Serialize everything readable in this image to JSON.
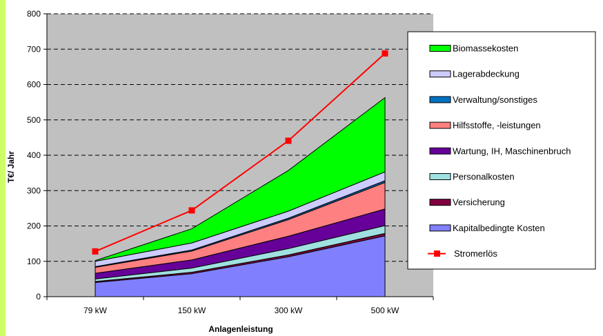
{
  "colors": {
    "left_strip": "#ccff66",
    "plot_background": "#c0c0c0",
    "gridline": "#000000"
  },
  "chart_data": {
    "type": "area",
    "stacked": true,
    "title": "",
    "xlabel": "Anlagenleistung",
    "ylabel": "T€/ Jahr",
    "ylim": [
      0,
      800
    ],
    "yticks": [
      0,
      100,
      200,
      300,
      400,
      500,
      600,
      700,
      800
    ],
    "grid": "horizontal dashed",
    "legend_position": "right",
    "categories": [
      "79 kW",
      "150 kW",
      "300 kW",
      "500 kW"
    ],
    "series": [
      {
        "name": "Kapitalbedingte Kosten",
        "kind": "area",
        "color": "#8080ff",
        "values": [
          40,
          65,
          113,
          172
        ]
      },
      {
        "name": "Versicherung",
        "kind": "area",
        "color": "#800040",
        "values": [
          3,
          4,
          5,
          7
        ]
      },
      {
        "name": "Personalkosten",
        "kind": "area",
        "color": "#a0e0e0",
        "values": [
          7,
          12,
          18,
          22
        ]
      },
      {
        "name": "Wartung, IH, Maschinenbruch",
        "kind": "area",
        "color": "#660099",
        "values": [
          16,
          23,
          35,
          47
        ]
      },
      {
        "name": "Hilfsstoffe, -leistungen",
        "kind": "area",
        "color": "#ff8080",
        "values": [
          17,
          25,
          47,
          75
        ]
      },
      {
        "name": "Verwaltung/sonstiges",
        "kind": "area",
        "color": "#0070c0",
        "values": [
          2,
          3,
          4,
          5
        ]
      },
      {
        "name": "Lagerabdeckung",
        "kind": "area",
        "color": "#ccccff",
        "values": [
          15,
          20,
          20,
          25
        ]
      },
      {
        "name": "Biomassekosten",
        "kind": "area",
        "color": "#00ff00",
        "values": [
          2,
          40,
          115,
          210
        ]
      },
      {
        "name": "Stromerlös",
        "kind": "line",
        "color": "#ff0000",
        "values": [
          128,
          244,
          441,
          688
        ]
      }
    ],
    "legend_order": [
      "Biomassekosten",
      "Lagerabdeckung",
      "Verwaltung/sonstiges",
      "Hilfsstoffe, -leistungen",
      "Wartung, IH, Maschinenbruch",
      "Personalkosten",
      "Versicherung",
      "Kapitalbedingte Kosten",
      "Stromerlös"
    ]
  }
}
